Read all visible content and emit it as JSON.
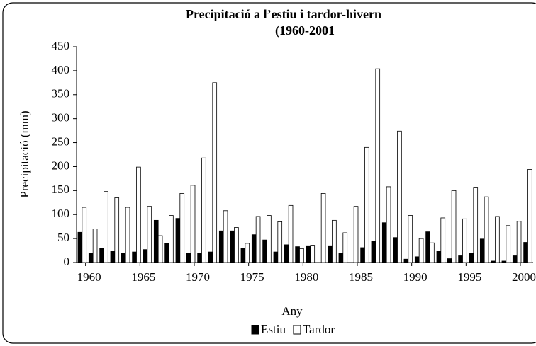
{
  "chart_data": {
    "type": "bar",
    "title": [
      "Precipitació a l’estiu i tardor-hivern",
      "(1960-2001"
    ],
    "x_label": "Any",
    "y_label": "Precipitació (mm)",
    "categories": [
      1960,
      null,
      null,
      null,
      null,
      1965,
      null,
      null,
      null,
      null,
      1970,
      null,
      null,
      null,
      null,
      1975,
      null,
      null,
      null,
      null,
      1980,
      null,
      null,
      null,
      null,
      1985,
      null,
      null,
      null,
      null,
      1990,
      null,
      null,
      null,
      null,
      1995,
      null,
      null,
      null,
      null,
      2000,
      null
    ],
    "series": [
      {
        "name": "Estiu",
        "color": "#000000",
        "values": [
          63,
          20,
          30,
          23,
          20,
          22,
          27,
          88,
          40,
          92,
          20,
          20,
          22,
          66,
          66,
          29,
          58,
          47,
          22,
          37,
          33,
          35,
          0,
          35,
          20,
          0,
          31,
          44,
          83,
          52,
          7,
          12,
          64,
          23,
          8,
          14,
          20,
          49,
          3,
          3,
          14,
          42
        ]
      },
      {
        "name": "Tardor",
        "color": "#ffffff",
        "values": [
          115,
          70,
          148,
          135,
          115,
          199,
          117,
          56,
          98,
          144,
          161,
          218,
          375,
          108,
          73,
          40,
          96,
          98,
          85,
          119,
          29,
          36,
          144,
          88,
          62,
          117,
          240,
          404,
          158,
          274,
          98,
          50,
          41,
          93,
          150,
          91,
          157,
          137,
          96,
          77,
          86,
          194
        ]
      }
    ],
    "ylim": [
      0,
      450
    ],
    "yticks": [
      0,
      50,
      100,
      150,
      200,
      250,
      300,
      350,
      400,
      450
    ],
    "legend": "bottom"
  }
}
